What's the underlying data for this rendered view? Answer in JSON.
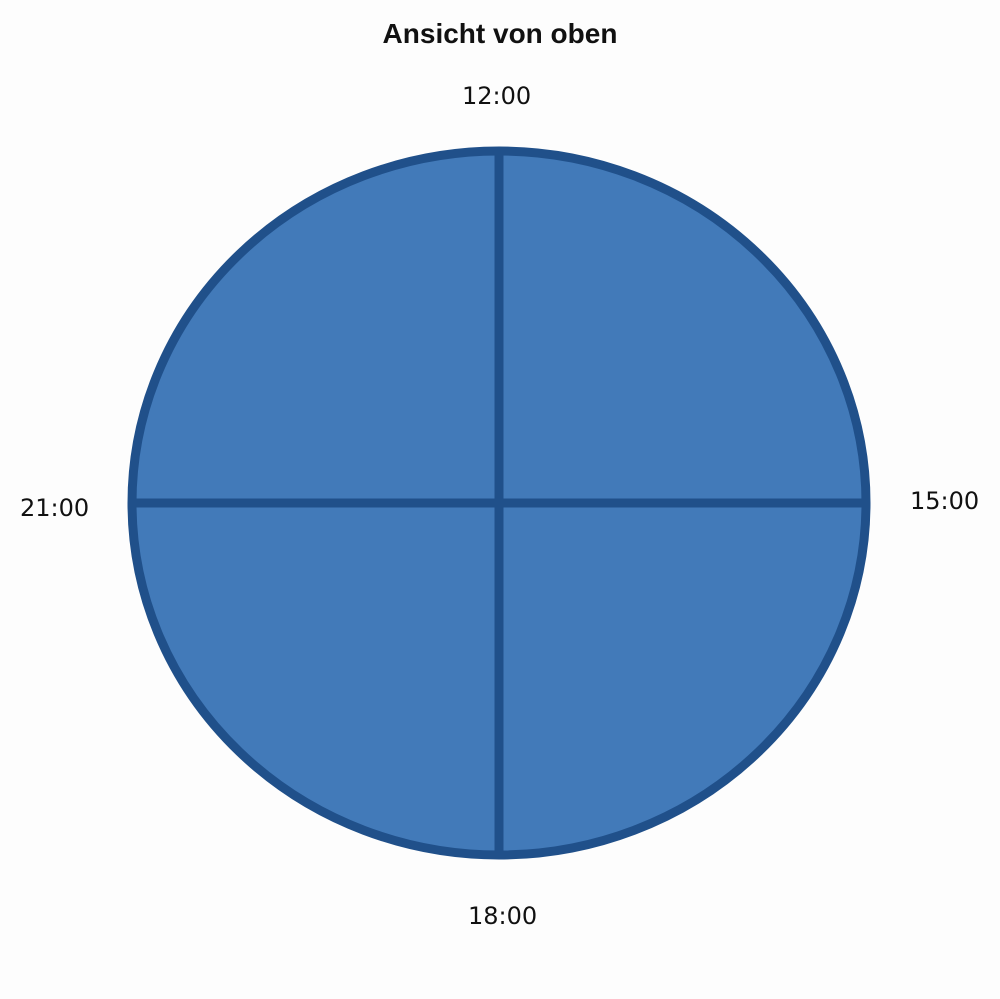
{
  "title": "Ansicht von oben",
  "labels": {
    "top": "12:00",
    "right": "15:00",
    "bottom": "18:00",
    "left": "21:00"
  },
  "colors": {
    "fill": "#427ab9",
    "stroke": "#20508a"
  }
}
